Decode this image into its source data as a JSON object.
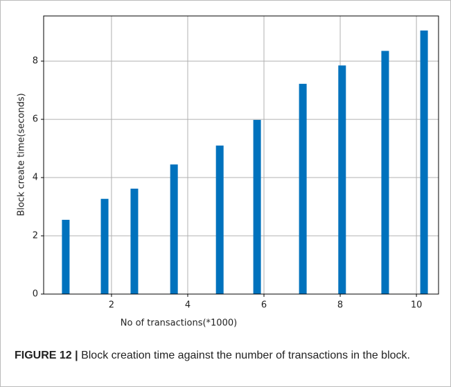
{
  "chart_data": {
    "type": "bar",
    "xlabel": "No of transactions(*1000)",
    "ylabel": "Block create time(seconds)",
    "x": [
      0.8,
      1.82,
      2.6,
      3.64,
      4.84,
      5.82,
      7.02,
      8.05,
      9.18,
      10.2
    ],
    "values": [
      2.55,
      3.27,
      3.62,
      4.45,
      5.1,
      5.98,
      7.22,
      7.85,
      8.35,
      9.05
    ],
    "color": "#0072bd",
    "xlim": [
      0.22,
      10.58
    ],
    "xticks": [
      2,
      4,
      6,
      8,
      10
    ],
    "ylim": [
      0,
      9.55
    ],
    "yticks": [
      0,
      2,
      4,
      6,
      8
    ],
    "grid": true
  },
  "caption": {
    "label": "FIGURE 12 |",
    "text": "Block creation time against the number of transactions in the block."
  }
}
